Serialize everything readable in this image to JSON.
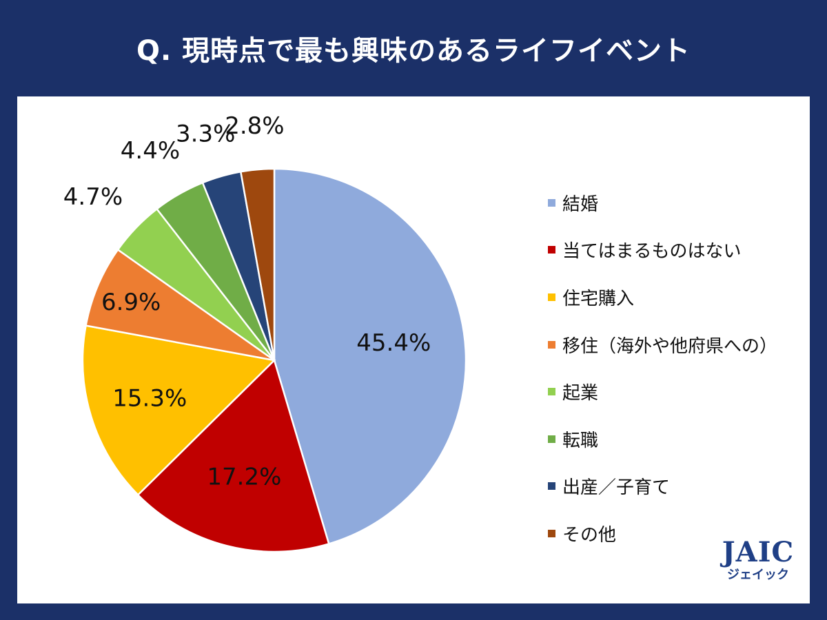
{
  "title": "Q. 現時点で最も興味のあるライフイベント",
  "chart_data": {
    "type": "pie",
    "title": "Q. 現時点で最も興味のあるライフイベント",
    "legend_position": "right",
    "slices": [
      {
        "label": "結婚",
        "value": 45.4,
        "display": "45.4%",
        "color": "#8faadc"
      },
      {
        "label": "当てはまるものはない",
        "value": 17.2,
        "display": "17.2%",
        "color": "#c00000"
      },
      {
        "label": "住宅購入",
        "value": 15.3,
        "display": "15.3%",
        "color": "#ffc000"
      },
      {
        "label": "移住（海外や他府県への）",
        "value": 6.9,
        "display": "6.9%",
        "color": "#ed7d31"
      },
      {
        "label": "起業",
        "value": 4.7,
        "display": "4.7%",
        "color": "#92d050"
      },
      {
        "label": "転職",
        "value": 4.4,
        "display": "4.4%",
        "color": "#70ad47"
      },
      {
        "label": "出産／子育て",
        "value": 3.3,
        "display": "3.3%",
        "color": "#264478"
      },
      {
        "label": "その他",
        "value": 2.8,
        "display": "2.8%",
        "color": "#9e480e"
      }
    ]
  },
  "logo": {
    "main": "JAIC",
    "sub": "ジェイック"
  }
}
